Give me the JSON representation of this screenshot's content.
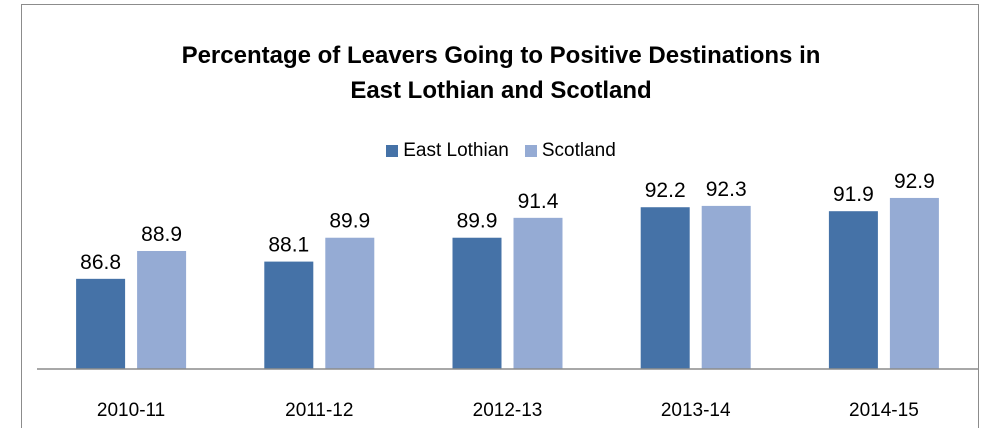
{
  "chart_data": {
    "type": "bar",
    "title_lines": [
      "Percentage of Leavers Going to Positive Destinations in",
      "East Lothian and Scotland"
    ],
    "xlabel": "",
    "ylabel": "",
    "categories": [
      "2010-11",
      "2011-12",
      "2012-13",
      "2013-14",
      "2014-15"
    ],
    "series": [
      {
        "name": "East Lothian",
        "color": "#4572a7",
        "values": [
          86.8,
          88.1,
          89.9,
          92.2,
          91.9
        ]
      },
      {
        "name": "Scotland",
        "color": "#95abd4",
        "values": [
          88.9,
          89.9,
          91.4,
          92.3,
          92.9
        ]
      }
    ],
    "ylim": [
      80,
      95
    ],
    "grid": false,
    "legend_position": "top-center",
    "axis_color": "#8c8c8c"
  }
}
